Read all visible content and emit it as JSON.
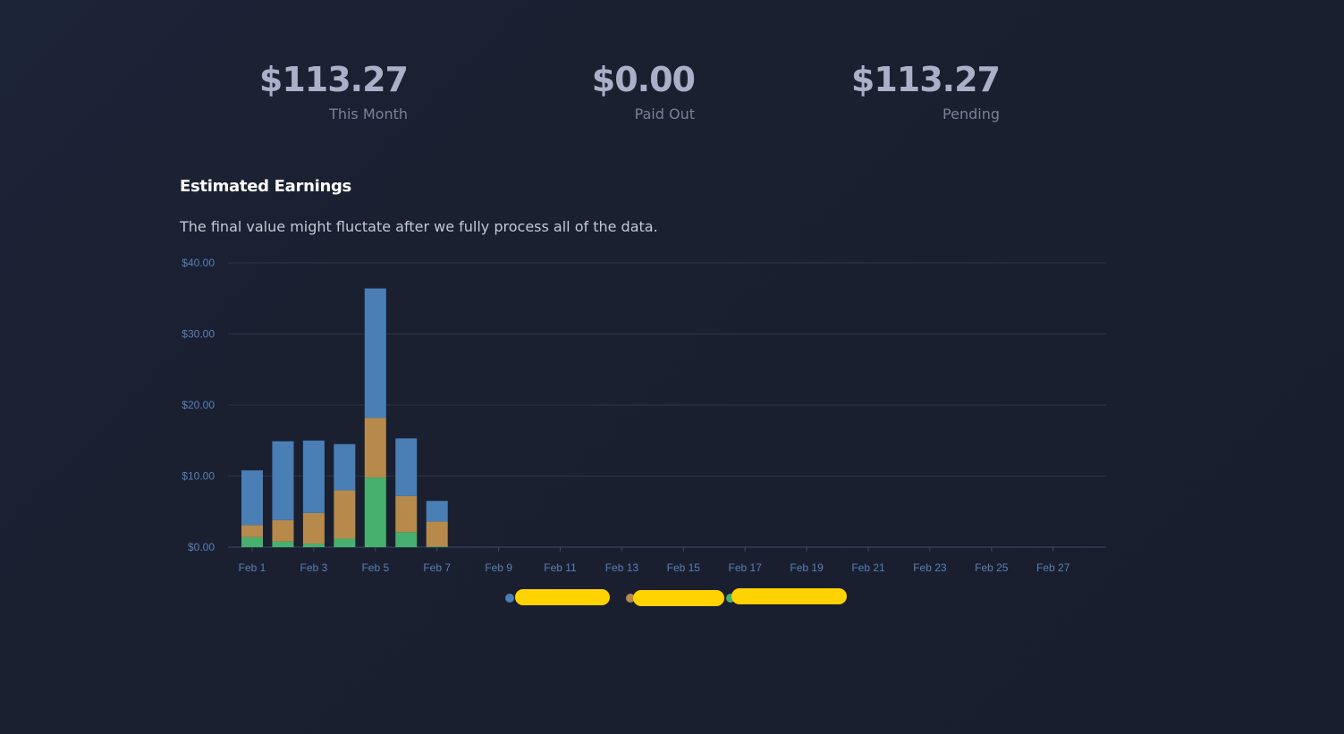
{
  "stats": [
    {
      "value": "$113.27",
      "label": "This Month"
    },
    {
      "value": "$0.00",
      "label": "Paid Out"
    },
    {
      "value": "$113.27",
      "label": "Pending"
    }
  ],
  "section": {
    "title": "Estimated Earnings",
    "description": "The final value might fluctate after we fully process all of the data."
  },
  "colors": {
    "series_blue": "#4a7fb5",
    "series_orange": "#b78a4c",
    "series_green": "#48b06e",
    "grid": "#2b3648",
    "tick": "#5a7fb8",
    "redaction": "#ffd200"
  },
  "chart_data": {
    "type": "bar",
    "stacked": true,
    "categories": [
      "Feb 1",
      "Feb 2",
      "Feb 3",
      "Feb 4",
      "Feb 5",
      "Feb 6",
      "Feb 7",
      "Feb 8",
      "Feb 9",
      "Feb 10",
      "Feb 11",
      "Feb 12",
      "Feb 13",
      "Feb 14",
      "Feb 15",
      "Feb 16",
      "Feb 17",
      "Feb 18",
      "Feb 19",
      "Feb 20",
      "Feb 21",
      "Feb 22",
      "Feb 23",
      "Feb 24",
      "Feb 25",
      "Feb 26",
      "Feb 27",
      "Feb 28"
    ],
    "x_tick_labels": [
      "Feb 1",
      "Feb 3",
      "Feb 5",
      "Feb 7",
      "Feb 9",
      "Feb 11",
      "Feb 13",
      "Feb 15",
      "Feb 17",
      "Feb 19",
      "Feb 21",
      "Feb 23",
      "Feb 25",
      "Feb 27"
    ],
    "y_tick_labels": [
      "$0.00",
      "$10.00",
      "$20.00",
      "$30.00",
      "$40.00"
    ],
    "ylim": [
      0,
      40
    ],
    "series": [
      {
        "color": "#48b06e",
        "values": [
          1.4,
          0.8,
          0.5,
          1.2,
          9.8,
          2.1,
          0.1,
          0,
          0,
          0,
          0,
          0,
          0,
          0,
          0,
          0,
          0,
          0,
          0,
          0,
          0,
          0,
          0,
          0,
          0,
          0,
          0,
          0
        ]
      },
      {
        "color": "#b78a4c",
        "values": [
          1.7,
          3.0,
          4.3,
          6.8,
          8.4,
          5.1,
          3.5,
          0,
          0,
          0,
          0,
          0,
          0,
          0,
          0,
          0,
          0,
          0,
          0,
          0,
          0,
          0,
          0,
          0,
          0,
          0,
          0,
          0
        ]
      },
      {
        "color": "#4a7fb5",
        "values": [
          7.7,
          11.1,
          10.2,
          6.5,
          18.2,
          8.1,
          2.9,
          0,
          0,
          0,
          0,
          0,
          0,
          0,
          0,
          0,
          0,
          0,
          0,
          0,
          0,
          0,
          0,
          0,
          0,
          0,
          0,
          0
        ]
      }
    ],
    "legend": {
      "position": "bottom"
    },
    "grid": true
  }
}
